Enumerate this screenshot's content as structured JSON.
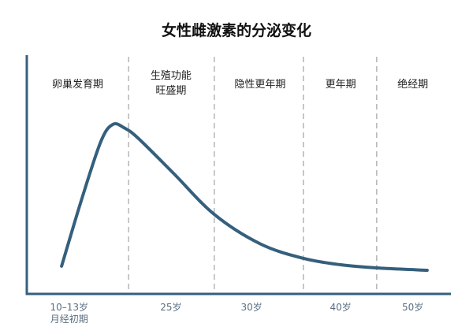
{
  "chart_data": {
    "type": "line",
    "title": "女性雌激素的分泌变化",
    "xlabel": "",
    "ylabel": "",
    "xlim": [
      0,
      10
    ],
    "ylim": [
      0,
      100
    ],
    "grid": false,
    "colors": {
      "line": "#355f7d",
      "axis": "#355f7d",
      "divider": "#aaaaaa"
    },
    "periods": [
      {
        "label": [
          "卵巢发育期"
        ],
        "x": 1.2
      },
      {
        "label": [
          "生殖功能",
          "旺盛期"
        ],
        "x": 3.4
      },
      {
        "label": [
          "隐性更年期"
        ],
        "x": 5.5
      },
      {
        "label": [
          "更年期"
        ],
        "x": 7.4
      },
      {
        "label": [
          "绝经期"
        ],
        "x": 9.1
      }
    ],
    "dividers": [
      2.4,
      4.42,
      6.52,
      8.25
    ],
    "x_ticks": [
      {
        "label": [
          "10–13岁",
          "月经初期"
        ],
        "x": 1.0
      },
      {
        "label": [
          "25岁"
        ],
        "x": 3.4
      },
      {
        "label": [
          "30岁"
        ],
        "x": 5.3
      },
      {
        "label": [
          "40岁"
        ],
        "x": 7.4
      },
      {
        "label": [
          "50岁"
        ],
        "x": 9.1
      }
    ],
    "series": [
      {
        "x": [
          0.82,
          1.3,
          1.75,
          2.03,
          2.3,
          2.62,
          3.46,
          4.42,
          5.5,
          6.52,
          7.4,
          8.25,
          9.44
        ],
        "y": [
          11.6,
          40,
          64,
          71,
          69.5,
          65.3,
          50.5,
          33.3,
          21,
          14.9,
          12.2,
          10.9,
          9.9
        ]
      }
    ]
  }
}
